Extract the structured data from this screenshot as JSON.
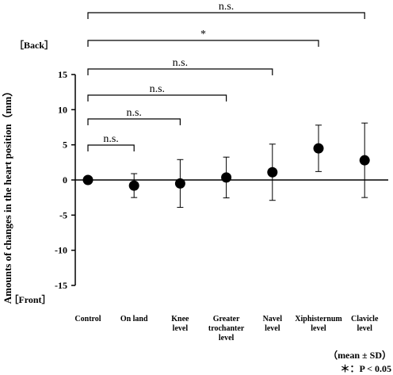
{
  "chart_data": {
    "type": "errorbar",
    "y_label": "Amounts of changes in the heart position（mm）",
    "top_label": "［Back］",
    "bottom_label": "［Front］",
    "categories": [
      "Control",
      "On land",
      "Knee\nlevel",
      "Greater\ntrochanter\nlevel",
      "Navel\nlevel",
      "Xiphisternum\nlevel",
      "Clavicle\nlevel"
    ],
    "values": [
      0,
      -0.8,
      -0.5,
      0.35,
      1.1,
      4.5,
      2.8
    ],
    "errors": [
      0,
      1.7,
      3.4,
      2.9,
      4,
      3.3,
      5.3
    ],
    "color": "#000000",
    "ylim": [
      -15,
      15
    ],
    "yticks": [
      -15,
      -10,
      -5,
      0,
      5,
      10,
      15
    ],
    "comparisons": [
      {
        "groups": [
          "Control",
          "On land"
        ],
        "label": "n.s."
      },
      {
        "groups": [
          "Control",
          "Knee\nlevel"
        ],
        "label": "n.s."
      },
      {
        "groups": [
          "Control",
          "Greater\ntrochanter\nlevel"
        ],
        "label": "n.s."
      },
      {
        "groups": [
          "Control",
          "Navel\nlevel"
        ],
        "label": "n.s."
      },
      {
        "groups": [
          "Control",
          "Xiphisternum\nlevel"
        ],
        "label": "*"
      },
      {
        "groups": [
          "Control",
          "Clavicle\nlevel"
        ],
        "label": "n.s."
      }
    ],
    "notes": [
      "（mean ± SD）",
      "＊：P < 0.05"
    ]
  }
}
